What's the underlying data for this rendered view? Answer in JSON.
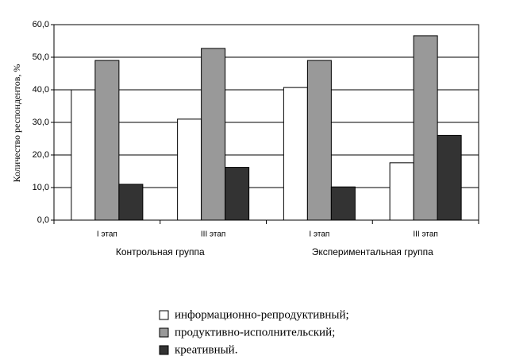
{
  "chart_data": {
    "type": "bar",
    "y_label": "Количество респондентов, %",
    "categories": [
      "I этап",
      "III этап",
      "I этап",
      "III этап"
    ],
    "group_labels": [
      "Контрольная группа",
      "Экспериментальная группа"
    ],
    "series": [
      {
        "name": "информационно-репродуктивный;",
        "color": "#ffffff",
        "values": [
          40,
          31,
          40.7,
          17.6
        ]
      },
      {
        "name": "продуктивно-исполнительский;",
        "color": "#999999",
        "values": [
          49,
          52.7,
          49,
          56.6
        ]
      },
      {
        "name": "креативный.",
        "color": "#333333",
        "values": [
          11,
          16.2,
          10.2,
          26
        ]
      }
    ],
    "ylim": [
      0,
      60
    ],
    "yticks": [
      {
        "value": 0,
        "label": "0,0"
      },
      {
        "value": 10,
        "label": "10,0"
      },
      {
        "value": 20,
        "label": "20,0"
      },
      {
        "value": 30,
        "label": "30,0"
      },
      {
        "value": 40,
        "label": "40,0"
      },
      {
        "value": 50,
        "label": "50,0"
      },
      {
        "value": 60,
        "label": "60,0"
      }
    ],
    "grid": true
  }
}
